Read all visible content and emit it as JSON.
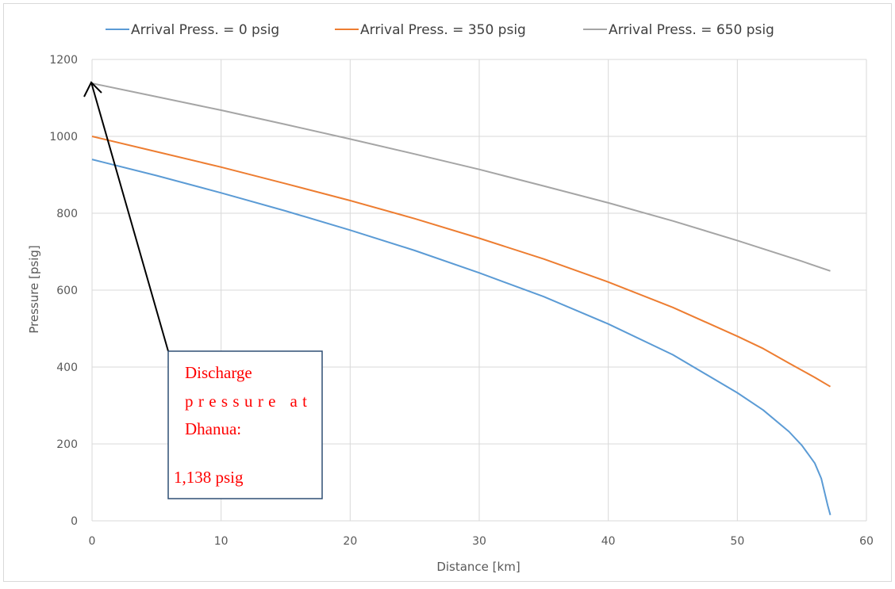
{
  "chart_data": {
    "type": "line",
    "title": "",
    "xlabel": "Distance [km]",
    "ylabel": "Pressure [psig]",
    "xlim": [
      0,
      60
    ],
    "ylim": [
      0,
      1200
    ],
    "x_ticks": [
      0,
      10,
      20,
      30,
      40,
      50,
      60
    ],
    "y_ticks": [
      0,
      200,
      400,
      600,
      800,
      1000,
      1200
    ],
    "grid": true,
    "legend_position": "top",
    "series": [
      {
        "name": "Arrival Press. = 0 psig",
        "color": "#5b9bd5",
        "points": [
          [
            0,
            940
          ],
          [
            5,
            898
          ],
          [
            10,
            853
          ],
          [
            15,
            806
          ],
          [
            20,
            756
          ],
          [
            25,
            703
          ],
          [
            30,
            645
          ],
          [
            35,
            583
          ],
          [
            40,
            512
          ],
          [
            45,
            432
          ],
          [
            50,
            333
          ],
          [
            52,
            288
          ],
          [
            54,
            232
          ],
          [
            55,
            196
          ],
          [
            56,
            150
          ],
          [
            56.5,
            110
          ],
          [
            57,
            40
          ],
          [
            57.2,
            15
          ]
        ]
      },
      {
        "name": "Arrival Press. = 350 psig",
        "color": "#ed7d31",
        "points": [
          [
            0,
            1000
          ],
          [
            5,
            960
          ],
          [
            10,
            920
          ],
          [
            15,
            877
          ],
          [
            20,
            833
          ],
          [
            25,
            786
          ],
          [
            30,
            735
          ],
          [
            35,
            681
          ],
          [
            40,
            621
          ],
          [
            45,
            555
          ],
          [
            50,
            480
          ],
          [
            52,
            448
          ],
          [
            54,
            410
          ],
          [
            56,
            373
          ],
          [
            57.2,
            349
          ]
        ]
      },
      {
        "name": "Arrival Press. = 650 psig",
        "color": "#a5a5a5",
        "points": [
          [
            0,
            1138
          ],
          [
            5,
            1103
          ],
          [
            10,
            1068
          ],
          [
            15,
            1031
          ],
          [
            20,
            993
          ],
          [
            25,
            954
          ],
          [
            30,
            914
          ],
          [
            35,
            871
          ],
          [
            40,
            827
          ],
          [
            45,
            780
          ],
          [
            50,
            729
          ],
          [
            55,
            675
          ],
          [
            57.2,
            650
          ]
        ]
      }
    ],
    "annotation": {
      "lines": [
        "Discharge",
        "pressure at",
        "Dhanua:",
        "1,138 psig"
      ],
      "target": [
        0,
        1138
      ]
    }
  }
}
